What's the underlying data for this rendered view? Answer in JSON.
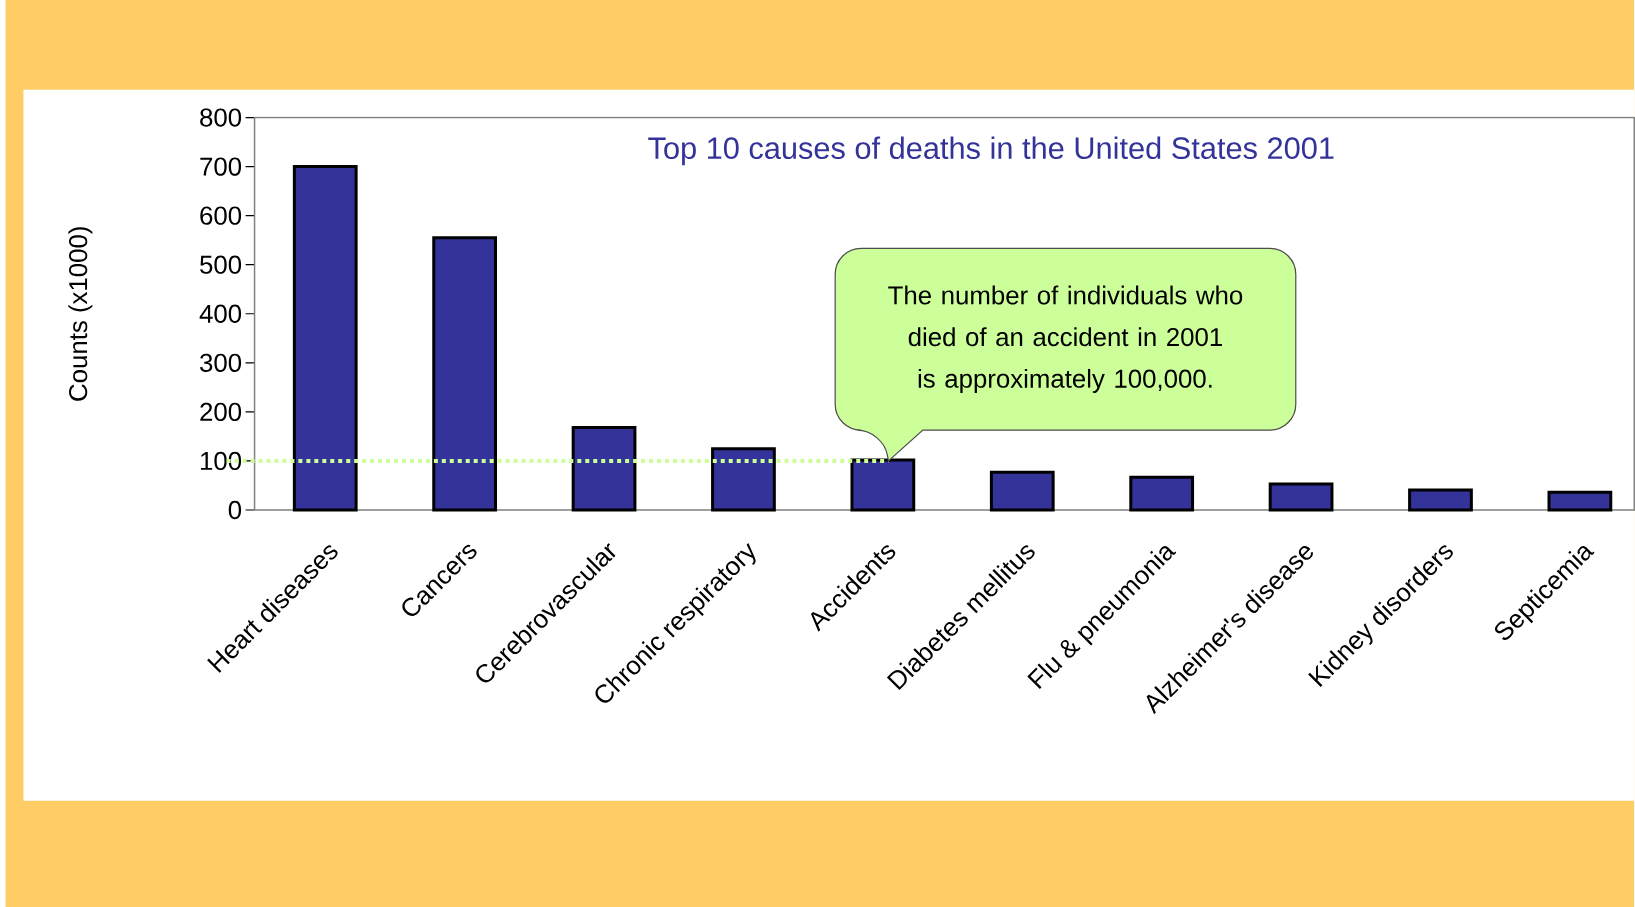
{
  "chart_data": {
    "type": "bar",
    "title": "Top 10 causes of deaths in the United States 2001",
    "ylabel": "Counts (x1000)",
    "categories": [
      "Heart diseases",
      "Cancers",
      "Cerebrovascular",
      "Chronic respiratory",
      "Accidents",
      "Diabetes mellitus",
      "Flu & pneumonia",
      "Alzheimer's disease",
      "Kidney disorders",
      "Septicemia"
    ],
    "values": [
      700,
      555,
      168,
      125,
      102,
      77,
      67,
      53,
      41,
      36
    ],
    "color": "#333399",
    "ylim": [
      0,
      800
    ],
    "yticks": [
      0,
      100,
      200,
      300,
      400,
      500,
      600,
      700,
      800
    ],
    "ref_lines": [
      {
        "axis": "y",
        "value": 100,
        "color": "#ccff99",
        "line_style": "dotted"
      }
    ],
    "annotations": [
      "The number of individuals who died of an accident in 2001 is approximately 100,000."
    ],
    "grid": false
  }
}
